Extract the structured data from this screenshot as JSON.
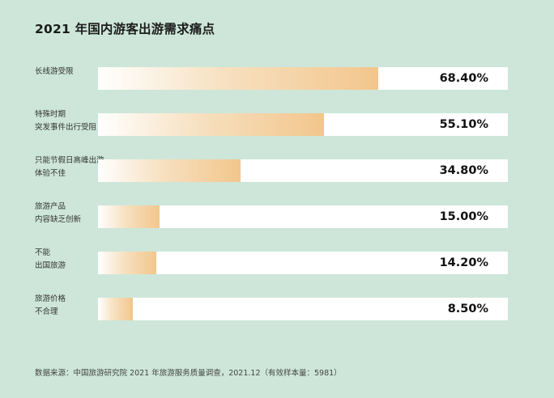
{
  "title": "2021 年国内游客出游需求痛点",
  "source": "数据来源：中国旅游研究院 2021 年旅游服务质量调查，2021.12（有效样本量：5981）",
  "colors": {
    "background": "#cde6d9",
    "bar": "#f2c68c",
    "track": "#ffffff"
  },
  "chart_data": {
    "type": "bar",
    "orientation": "horizontal",
    "title": "2021 年国内游客出游需求痛点",
    "categories": [
      "长线游受限",
      "特殊时期\n突发事件出行受阻",
      "只能节假日高峰出游，\n体验不佳",
      "旅游产品\n内容缺乏创新",
      "不能\n出国旅游",
      "旅游价格\n不合理"
    ],
    "values": [
      68.4,
      55.1,
      34.8,
      15.0,
      14.2,
      8.5
    ],
    "value_labels": [
      "68.40%",
      "55.10%",
      "34.80%",
      "15.00%",
      "14.20%",
      "8.50%"
    ],
    "xlim": [
      0,
      100
    ],
    "unit": "%",
    "grid": false,
    "legend": "none"
  }
}
